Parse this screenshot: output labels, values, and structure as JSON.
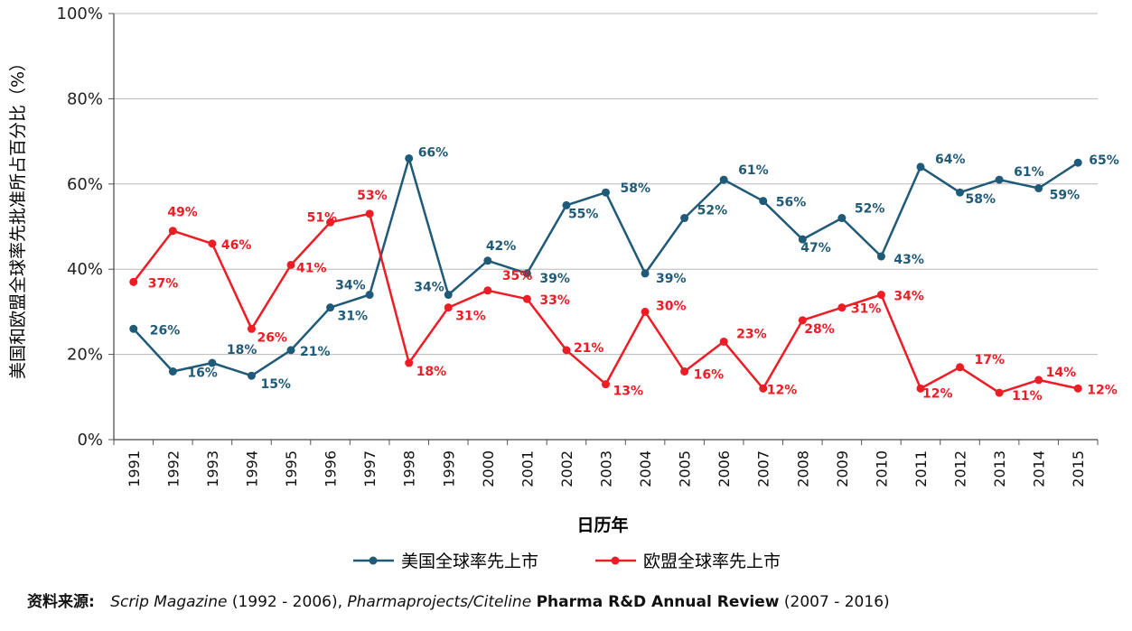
{
  "chart_data": {
    "type": "line",
    "title": "",
    "xlabel": "日历年",
    "ylabel": "美国和欧盟全球率先批准所占百分比（%）",
    "categories": [
      "1991",
      "1992",
      "1993",
      "1994",
      "1995",
      "1996",
      "1997",
      "1998",
      "1999",
      "2000",
      "2001",
      "2002",
      "2003",
      "2004",
      "2005",
      "2006",
      "2007",
      "2008",
      "2009",
      "2010",
      "2011",
      "2012",
      "2013",
      "2014",
      "2015"
    ],
    "ylim": [
      0,
      100
    ],
    "yticks": [
      0,
      20,
      40,
      60,
      80,
      100
    ],
    "ytick_labels": [
      "0%",
      "20%",
      "40%",
      "60%",
      "80%",
      "100%"
    ],
    "grid": "horizontal",
    "legend_position": "bottom",
    "series": [
      {
        "name": "美国全球率先上市",
        "color": "#1F5A78",
        "values": [
          26,
          16,
          18,
          15,
          21,
          31,
          34,
          66,
          34,
          42,
          39,
          55,
          58,
          39,
          52,
          61,
          56,
          47,
          52,
          43,
          64,
          58,
          61,
          59,
          65
        ]
      },
      {
        "name": "欧盟全球率先上市",
        "color": "#EE1C25",
        "values": [
          37,
          49,
          46,
          26,
          41,
          51,
          53,
          18,
          31,
          35,
          33,
          21,
          13,
          30,
          16,
          23,
          12,
          28,
          31,
          34,
          12,
          17,
          11,
          14,
          12
        ]
      }
    ]
  },
  "source": {
    "label": "资料来源:",
    "scrip": "Scrip Magazine",
    "years1": "(1992 - 2006),",
    "pharmaprojects": "Pharmaprojects/Citeline",
    "review": "Pharma R&D Annual Review",
    "years2": "(2007 - 2016)"
  }
}
